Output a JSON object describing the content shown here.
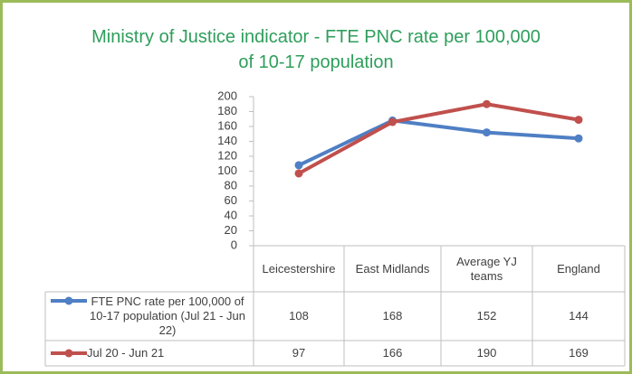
{
  "chart_data": {
    "type": "line",
    "title": [
      "Ministry of Justice indicator - FTE PNC rate per 100,000",
      "of 10-17 population"
    ],
    "categories": [
      "Leicestershire",
      "East Midlands",
      "Average YJ teams",
      "England"
    ],
    "series": [
      {
        "name": "FTE PNC rate per 100,000 of 10-17 population (Jul 21 - Jun 22)",
        "color": "#4f7fc4",
        "values": [
          108,
          168,
          152,
          144
        ]
      },
      {
        "name": "Jul 20 - Jun 21",
        "color": "#c0504d",
        "values": [
          97,
          166,
          190,
          169
        ]
      }
    ],
    "ylim": [
      0,
      200
    ],
    "yticks": [
      0,
      20,
      40,
      60,
      80,
      100,
      120,
      140,
      160,
      180,
      200
    ],
    "grid": false,
    "title_color": "#2e9e5b"
  }
}
